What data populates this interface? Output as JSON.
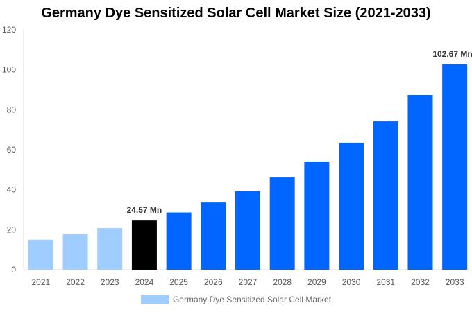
{
  "chart_data": {
    "type": "bar",
    "title": "Germany Dye Sensitized Solar Cell Market Size (2021-2033)",
    "categories": [
      "2021",
      "2022",
      "2023",
      "2024",
      "2025",
      "2026",
      "2027",
      "2028",
      "2029",
      "2030",
      "2031",
      "2032",
      "2033"
    ],
    "series": [
      {
        "name": "Germany Dye Sensitized Solar Cell Market",
        "values": [
          15.0,
          17.7,
          20.8,
          24.57,
          28.6,
          33.6,
          39.2,
          46.1,
          54.1,
          63.5,
          74.2,
          87.4,
          102.67
        ]
      }
    ],
    "data_labels": {
      "3": "24.57 Mn",
      "12": "102.67 Mn"
    },
    "ylim": [
      0,
      120
    ],
    "yticks": [
      0,
      20,
      40,
      60,
      80,
      100,
      120
    ],
    "grid": false,
    "legend": "bottom",
    "colors": {
      "historical": "#a0cdff",
      "current": "#000000",
      "forecast": "#0066ff"
    }
  }
}
